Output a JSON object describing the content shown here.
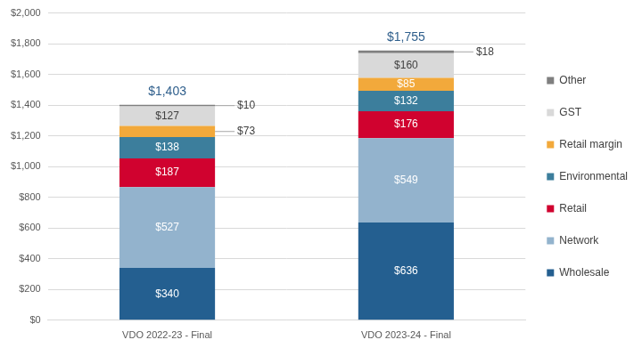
{
  "chart_data": {
    "type": "bar",
    "stacked": true,
    "data_labels": true,
    "grid": true,
    "legend": "right",
    "categories": [
      "VDO 2022-23 - Final",
      "VDO 2023-24 - Final"
    ],
    "series": [
      {
        "name": "Wholesale",
        "color": "#245f90",
        "values": [
          340,
          636
        ],
        "value_labels": [
          "$340",
          "$636"
        ]
      },
      {
        "name": "Network",
        "color": "#93b3cd",
        "values": [
          527,
          549
        ],
        "value_labels": [
          "$527",
          "$549"
        ]
      },
      {
        "name": "Retail",
        "color": "#d0022f",
        "values": [
          187,
          176
        ],
        "value_labels": [
          "$187",
          "$176"
        ]
      },
      {
        "name": "Environmental",
        "color": "#3c7e9c",
        "values": [
          138,
          132
        ],
        "value_labels": [
          "$138",
          "$132"
        ]
      },
      {
        "name": "Retail margin",
        "color": "#f2a93b",
        "values": [
          73,
          85
        ],
        "value_labels": [
          "$73",
          "$85"
        ]
      },
      {
        "name": "GST",
        "color": "#d9d9d9",
        "values": [
          127,
          160
        ],
        "value_labels": [
          "$127",
          "$160"
        ]
      },
      {
        "name": "Other",
        "color": "#7f7f7f",
        "values": [
          10,
          18
        ],
        "value_labels": [
          "$10",
          "$18"
        ]
      }
    ],
    "ylim": [
      0,
      2000
    ],
    "yticks": [
      {
        "value": 0,
        "label": "$0"
      },
      {
        "value": 200,
        "label": "$200"
      },
      {
        "value": 400,
        "label": "$400"
      },
      {
        "value": 600,
        "label": "$600"
      },
      {
        "value": 800,
        "label": "$800"
      },
      {
        "value": 1000,
        "label": "$1,000"
      },
      {
        "value": 1200,
        "label": "$1,200"
      },
      {
        "value": 1400,
        "label": "$1,400"
      },
      {
        "value": 1600,
        "label": "$1,600"
      },
      {
        "value": 1800,
        "label": "$1,800"
      },
      {
        "value": 2000,
        "label": "$2,000"
      }
    ],
    "annotations": [
      {
        "category": "VDO 2022-23 - Final",
        "value": 1403,
        "label": "$1,403"
      },
      {
        "category": "VDO 2023-24 - Final",
        "value": 1755,
        "label": "$1,755"
      }
    ]
  }
}
